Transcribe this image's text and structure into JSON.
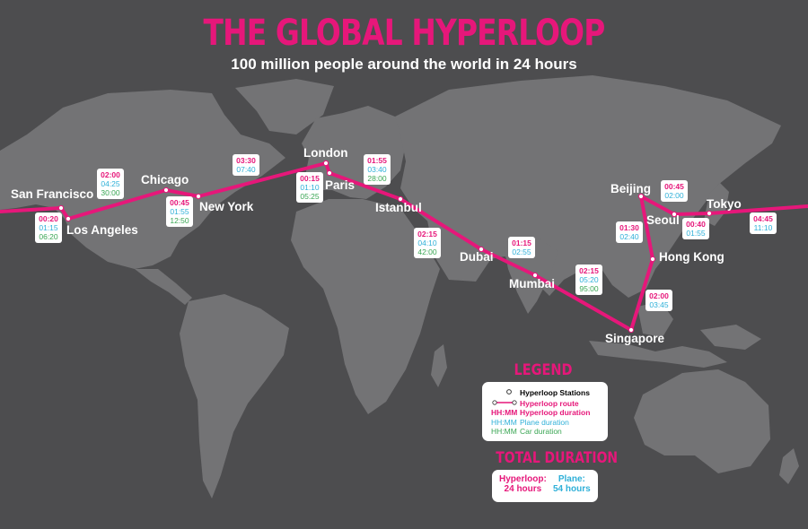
{
  "header": {
    "title": "THE GLOBAL HYPERLOOP",
    "subtitle": "100 million people around the world in 24 hours"
  },
  "colors": {
    "route": "#e6177a",
    "hyperloop_duration": "#e6177a",
    "plane_duration": "#2fb0d8",
    "car_duration": "#3aa654",
    "land": "#737375",
    "ocean": "#4d4d4f"
  },
  "cities": [
    {
      "id": "san-francisco",
      "name": "San Francisco"
    },
    {
      "id": "los-angeles",
      "name": "Los Angeles"
    },
    {
      "id": "chicago",
      "name": "Chicago"
    },
    {
      "id": "new-york",
      "name": "New York"
    },
    {
      "id": "london",
      "name": "London"
    },
    {
      "id": "paris",
      "name": "Paris"
    },
    {
      "id": "istanbul",
      "name": "Istanbul"
    },
    {
      "id": "dubai",
      "name": "Dubai"
    },
    {
      "id": "mumbai",
      "name": "Mumbai"
    },
    {
      "id": "singapore",
      "name": "Singapore"
    },
    {
      "id": "hong-kong",
      "name": "Hong Kong"
    },
    {
      "id": "beijing",
      "name": "Beijing"
    },
    {
      "id": "seoul",
      "name": "Seoul"
    },
    {
      "id": "tokyo",
      "name": "Tokyo"
    }
  ],
  "legs": [
    {
      "id": "sf-la",
      "hyperloop": "00:20",
      "plane": "01:15",
      "car": "06:20"
    },
    {
      "id": "la-chicago",
      "hyperloop": "02:00",
      "plane": "04:25",
      "car": "30:00"
    },
    {
      "id": "chicago-ny",
      "hyperloop": "00:45",
      "plane": "01:55",
      "car": "12:50"
    },
    {
      "id": "ny-london",
      "hyperloop": "03:30",
      "plane": "07:40",
      "car": ""
    },
    {
      "id": "london-paris",
      "hyperloop": "00:15",
      "plane": "01:10",
      "car": "05:25"
    },
    {
      "id": "paris-istanbul",
      "hyperloop": "01:55",
      "plane": "03:40",
      "car": "28:00"
    },
    {
      "id": "istanbul-dubai",
      "hyperloop": "02:15",
      "plane": "04:10",
      "car": "42:00"
    },
    {
      "id": "dubai-mumbai",
      "hyperloop": "01:15",
      "plane": "02:55",
      "car": ""
    },
    {
      "id": "mumbai-singapore",
      "hyperloop": "02:15",
      "plane": "05:20",
      "car": "95:00"
    },
    {
      "id": "singapore-hongkong",
      "hyperloop": "02:00",
      "plane": "03:45",
      "car": ""
    },
    {
      "id": "hongkong-beijing",
      "hyperloop": "01:30",
      "plane": "02:40",
      "car": ""
    },
    {
      "id": "beijing-seoul",
      "hyperloop": "00:45",
      "plane": "02:00",
      "car": ""
    },
    {
      "id": "seoul-tokyo",
      "hyperloop": "00:40",
      "plane": "01:55",
      "car": ""
    },
    {
      "id": "tokyo-sf",
      "hyperloop": "04:45",
      "plane": "11:10",
      "car": ""
    }
  ],
  "legend": {
    "title": "LEGEND",
    "stations": "Hyperloop Stations",
    "route": "Hyperloop route",
    "hyperloop_key": "HH:MM",
    "hyperloop": "Hyperloop duration",
    "plane_key": "HH:MM",
    "plane": "Plane duration",
    "car_key": "HH:MM",
    "car": "Car duration"
  },
  "total": {
    "title": "TOTAL DURATION",
    "hyperloop_label": "Hyperloop:",
    "hyperloop_value": "24 hours",
    "plane_label": "Plane:",
    "plane_value": "54 hours"
  }
}
